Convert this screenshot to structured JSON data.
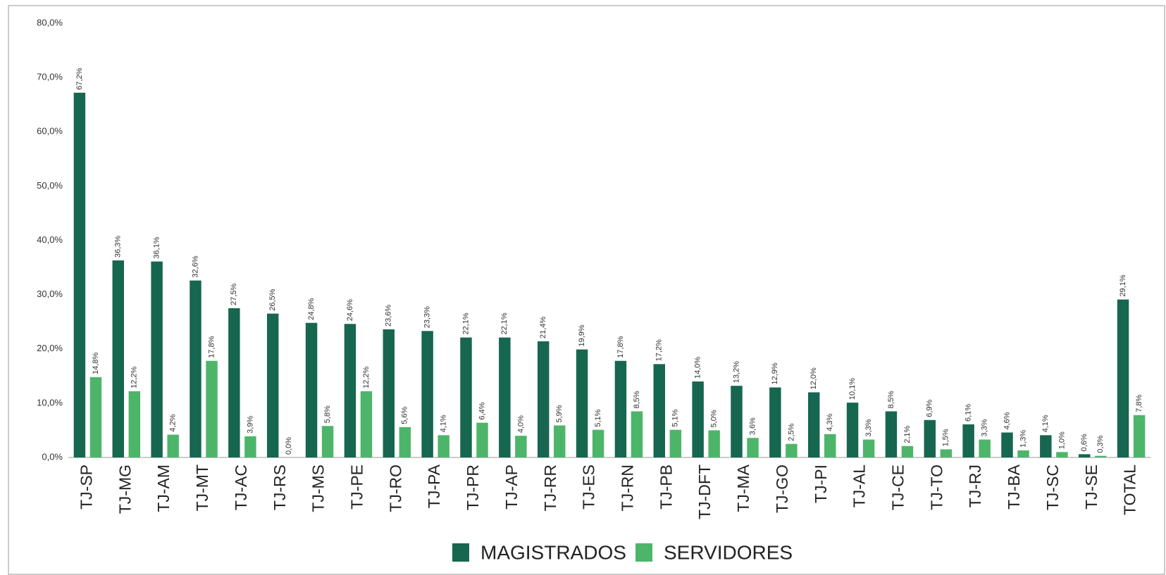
{
  "chart_data": {
    "type": "bar",
    "categories": [
      "TJ-SP",
      "TJ-MG",
      "TJ-AM",
      "TJ-MT",
      "TJ-AC",
      "TJ-RS",
      "TJ-MS",
      "TJ-PE",
      "TJ-RO",
      "TJ-PA",
      "TJ-PR",
      "TJ-AP",
      "TJ-RR",
      "TJ-ES",
      "TJ-RN",
      "TJ-PB",
      "TJ-DFT",
      "TJ-MA",
      "TJ-GO",
      "TJ-PI",
      "TJ-AL",
      "TJ-CE",
      "TJ-TO",
      "TJ-RJ",
      "TJ-BA",
      "TJ-SC",
      "TJ-SE",
      "TOTAL"
    ],
    "series": [
      {
        "name": "MAGISTRADOS",
        "color": "#17664f",
        "values": [
          67.2,
          36.3,
          36.1,
          32.6,
          27.5,
          26.5,
          24.8,
          24.6,
          23.6,
          23.3,
          22.1,
          22.1,
          21.4,
          19.9,
          17.8,
          17.2,
          14.0,
          13.2,
          12.9,
          12.0,
          10.1,
          8.5,
          6.9,
          6.1,
          4.6,
          4.1,
          0.6,
          29.1
        ],
        "value_labels": [
          "67,2%",
          "36,3%",
          "36,1%",
          "32,6%",
          "27,5%",
          "26,5%",
          "24,8%",
          "24,6%",
          "23,6%",
          "23,3%",
          "22,1%",
          "22,1%",
          "21,4%",
          "19,9%",
          "17,8%",
          "17,2%",
          "14,0%",
          "13,2%",
          "12,9%",
          "12,0%",
          "10,1%",
          "8,5%",
          "6,9%",
          "6,1%",
          "4,6%",
          "4,1%",
          "0,6%",
          "29,1%"
        ]
      },
      {
        "name": "SERVIDORES",
        "color": "#4db56a",
        "values": [
          14.8,
          12.2,
          4.2,
          17.8,
          3.9,
          0.0,
          5.8,
          12.2,
          5.6,
          4.1,
          6.4,
          4.0,
          5.9,
          5.1,
          8.5,
          5.1,
          5.0,
          3.6,
          2.5,
          4.3,
          3.3,
          2.1,
          1.5,
          3.3,
          1.3,
          1.0,
          0.3,
          7.8
        ],
        "value_labels": [
          "14,8%",
          "12,2%",
          "4,2%",
          "17,8%",
          "3,9%",
          "0,0%",
          "5,8%",
          "12,2%",
          "5,6%",
          "4,1%",
          "6,4%",
          "4,0%",
          "5,9%",
          "5,1%",
          "8,5%",
          "5,1%",
          "5,0%",
          "3,6%",
          "2,5%",
          "4,3%",
          "3,3%",
          "2,1%",
          "1,5%",
          "3,3%",
          "1,3%",
          "1,0%",
          "0,3%",
          "7,8%"
        ]
      }
    ],
    "ylim": [
      0,
      80
    ],
    "yticks": [
      {
        "value": 0,
        "label": "0,0%"
      },
      {
        "value": 10,
        "label": "10,0%"
      },
      {
        "value": 20,
        "label": "20,0%"
      },
      {
        "value": 30,
        "label": "30,0%"
      },
      {
        "value": 40,
        "label": "40,0%"
      },
      {
        "value": 50,
        "label": "50,0%"
      },
      {
        "value": 60,
        "label": "60,0%"
      },
      {
        "value": 70,
        "label": "70,0%"
      },
      {
        "value": 80,
        "label": "80,0%"
      }
    ],
    "grid": false,
    "legend": "bottom"
  }
}
